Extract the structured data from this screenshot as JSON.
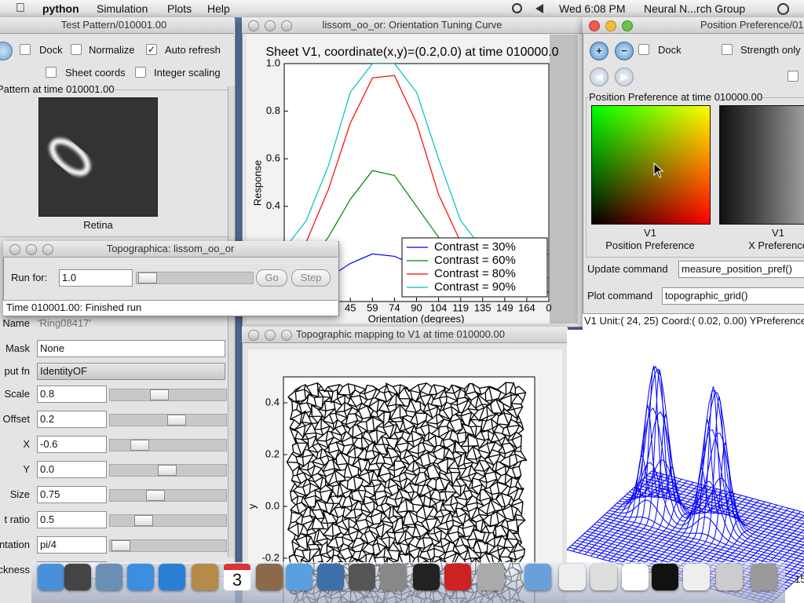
{
  "menu_bar": {
    "app": "python",
    "items": [
      "Simulation",
      "Plots",
      "Help"
    ],
    "clock": "Wed 6:08 PM",
    "user": "Neural N...rch Group"
  },
  "test_pattern_window": {
    "title": "Test Pattern/010001.00",
    "options": [
      {
        "label": "Dock",
        "checked": false
      },
      {
        "label": "Normalize",
        "checked": false
      },
      {
        "label": "Auto refresh",
        "checked": true
      },
      {
        "label": "Sheet coords",
        "checked": false
      },
      {
        "label": "Integer scaling",
        "checked": false
      }
    ],
    "pattern_label": "Pattern at time 010001.00",
    "image_caption": "Retina",
    "parameters": [
      {
        "label": "Name",
        "value": "'Ring08417'"
      },
      {
        "label": "Mask",
        "value": "None"
      },
      {
        "label": "put fn",
        "value": "IdentityOF"
      },
      {
        "label": "Scale",
        "value": "0.8"
      },
      {
        "label": "Offset",
        "value": "0.2"
      },
      {
        "label": "X",
        "value": "-0.6"
      },
      {
        "label": "Y",
        "value": "0.0"
      },
      {
        "label": "Size",
        "value": "0.75"
      },
      {
        "label": "t ratio",
        "value": "0.5"
      },
      {
        "label": "ntation",
        "value": "pi/4"
      },
      {
        "label": "ckness",
        "value": "1"
      }
    ]
  },
  "tuning_window": {
    "title": "lissom_oo_or: Orientation Tuning Curve",
    "plot": {
      "title": "Sheet V1, coordinate(x,y)=(0.2,0.0) at time 010000.0",
      "ylabel": "Response",
      "xlabel": "Orientation (degrees)",
      "categories": [
        null,
        null,
        null,
        "45",
        "59",
        "74",
        "90",
        "104",
        "119",
        "135",
        "149",
        "164",
        "0"
      ],
      "ylim": [
        0,
        1
      ],
      "yticks": [
        0.4,
        0.6,
        0.8,
        {
          "value": 1,
          "label": "1.0"
        }
      ],
      "series": [
        {
          "name": "Contrast = 30%",
          "color": "#0000ff",
          "values": [
            0.04,
            0.06,
            0.1,
            0.16,
            0.2,
            0.19,
            0.15,
            0.1,
            0.06,
            0.04,
            0.03,
            0.03,
            0.04
          ]
        },
        {
          "name": "Contrast = 60%",
          "color": "#008000",
          "values": [
            0.1,
            0.15,
            0.27,
            0.43,
            0.55,
            0.53,
            0.4,
            0.27,
            0.15,
            0.1,
            0.09,
            0.09,
            0.1
          ]
        },
        {
          "name": "Contrast = 80%",
          "color": "#ff0000",
          "values": [
            0.18,
            0.25,
            0.47,
            0.75,
            0.94,
            0.95,
            0.75,
            0.45,
            0.25,
            0.18,
            0.17,
            0.17,
            0.2
          ]
        },
        {
          "name": "Contrast = 90%",
          "color": "#00bfbf",
          "values": [
            0.22,
            0.34,
            0.57,
            0.88,
            1,
            1,
            0.88,
            0.6,
            0.34,
            0.22,
            0.2,
            0.2,
            0.22
          ]
        }
      ]
    }
  },
  "run_window": {
    "title": "Topographica: lissom_oo_or",
    "run_label": "Run for:",
    "run_value": "1.0",
    "buttons": [
      "Go",
      "Step"
    ],
    "status": "Time 010001.00: Finished run"
  },
  "topo_window": {
    "title": "Topographic mapping to V1 at time 010000.00",
    "ylabel": "y",
    "ylim": [
      -0.5,
      0.5
    ],
    "yticks": [
      0.4,
      0.2,
      {
        "value": 0,
        "label": "0.0"
      },
      -0.2
    ]
  },
  "position_window": {
    "title": "Position Preference/010000.00",
    "options": [
      "Dock",
      "Strength only"
    ],
    "group_label": "Position Preference at time 010000.00",
    "plots": [
      {
        "sheet": "V1",
        "name": "Position Preference"
      },
      {
        "sheet": "V1",
        "name": "X Preference"
      }
    ],
    "update_label": "Update command",
    "update_value": "measure_position_pref()",
    "plot_label": "Plot command",
    "plot_value": "topographic_grid()",
    "status": "V1 Unit:( 24, 25) Coord:( 0.02, 0.00) YPreference"
  },
  "dock": {
    "calendar_day": "3",
    "corner_badge": "15"
  }
}
